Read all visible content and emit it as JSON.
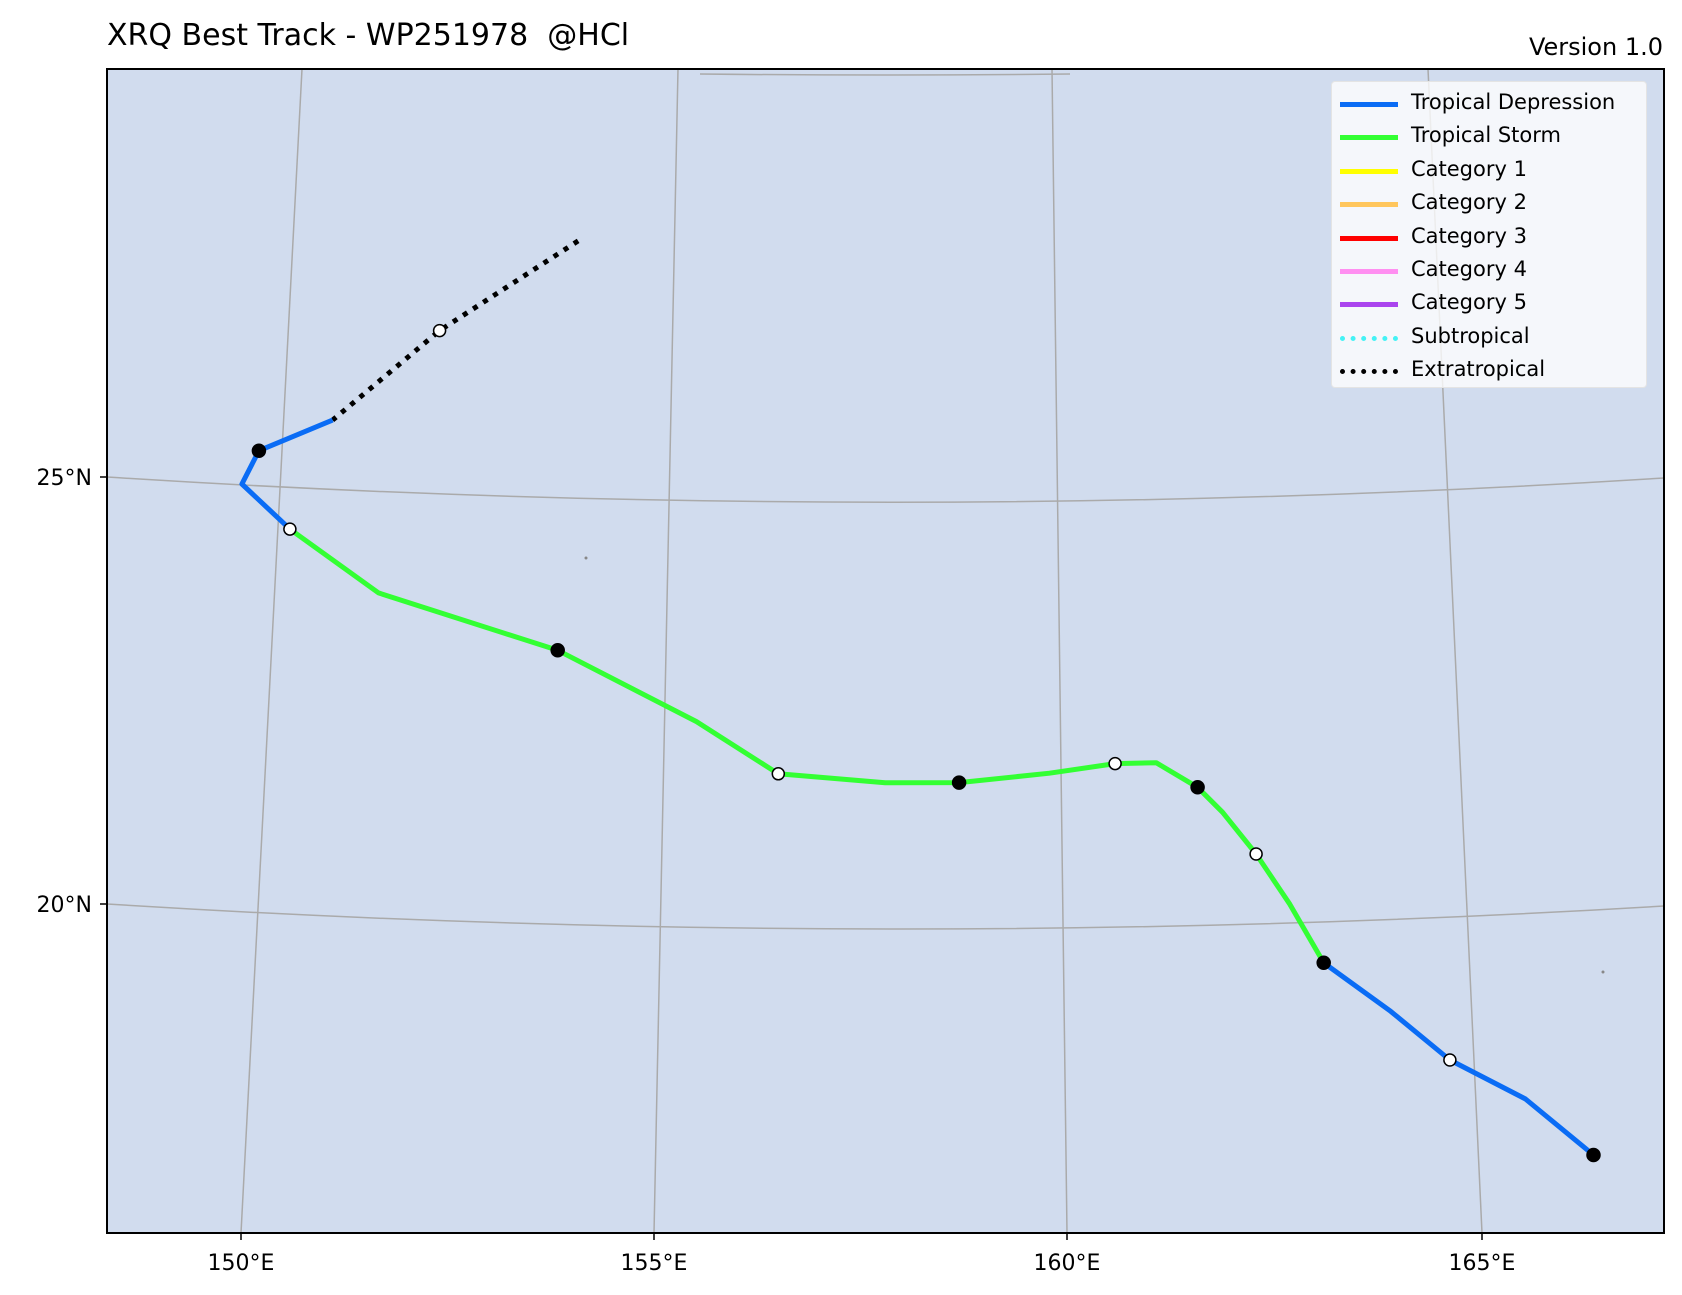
{
  "header": {
    "title": "XRQ Best Track - WP251978  @HCl",
    "version": "Version 1.0"
  },
  "map": {
    "background_color": "#d1dcee",
    "grid_color": "#aaaaaa",
    "lon_labels": [
      "150°E",
      "155°E",
      "160°E",
      "165°E"
    ],
    "lat_labels": [
      "25°N",
      "20°N"
    ]
  },
  "legend": [
    {
      "label": "Tropical Depression",
      "color": "#0a6cf5",
      "style": "solid"
    },
    {
      "label": "Tropical Storm",
      "color": "#33ff33",
      "style": "solid"
    },
    {
      "label": "Category 1",
      "color": "#ffff00",
      "style": "solid"
    },
    {
      "label": "Category 2",
      "color": "#ffc65c",
      "style": "solid"
    },
    {
      "label": "Category 3",
      "color": "#ff0000",
      "style": "solid"
    },
    {
      "label": "Category 4",
      "color": "#ff8ff1",
      "style": "solid"
    },
    {
      "label": "Category 5",
      "color": "#aa44ee",
      "style": "solid"
    },
    {
      "label": "Subtropical",
      "color": "#44f2f5",
      "style": "dotted"
    },
    {
      "label": "Extratropical",
      "color": "#000000",
      "style": "dotted"
    }
  ],
  "track": {
    "segments": [
      {
        "category": "Extratropical",
        "points": [
          [
            154.0,
            28.0
          ],
          [
            152.3,
            26.9
          ],
          [
            151.0,
            25.8
          ]
        ]
      },
      {
        "category": "Tropical Depression",
        "points": [
          [
            151.0,
            25.8
          ],
          [
            150.1,
            25.4
          ],
          [
            149.9,
            25.0
          ],
          [
            150.5,
            24.5
          ]
        ]
      },
      {
        "category": "Tropical Storm",
        "points": [
          [
            150.5,
            24.5
          ],
          [
            151.6,
            23.8
          ],
          [
            153.8,
            23.2
          ],
          [
            155.5,
            22.4
          ],
          [
            156.5,
            21.8
          ],
          [
            157.8,
            21.7
          ],
          [
            158.7,
            21.7
          ],
          [
            159.8,
            21.8
          ],
          [
            160.6,
            21.9
          ],
          [
            161.1,
            21.9
          ],
          [
            161.6,
            21.6
          ],
          [
            161.9,
            21.3
          ],
          [
            162.3,
            20.8
          ],
          [
            162.7,
            20.2
          ],
          [
            163.1,
            19.5
          ]
        ]
      },
      {
        "category": "Tropical Depression",
        "points": [
          [
            163.1,
            19.5
          ],
          [
            163.9,
            18.9
          ],
          [
            164.6,
            18.3
          ],
          [
            165.5,
            17.8
          ],
          [
            166.3,
            17.1
          ]
        ]
      }
    ],
    "fixes": [
      {
        "lon": 152.3,
        "lat": 26.9,
        "type": "open"
      },
      {
        "lon": 150.1,
        "lat": 25.4,
        "type": "filled"
      },
      {
        "lon": 150.5,
        "lat": 24.5,
        "type": "open"
      },
      {
        "lon": 153.8,
        "lat": 23.2,
        "type": "filled"
      },
      {
        "lon": 156.5,
        "lat": 21.8,
        "type": "open"
      },
      {
        "lon": 158.7,
        "lat": 21.7,
        "type": "filled"
      },
      {
        "lon": 160.6,
        "lat": 21.9,
        "type": "open"
      },
      {
        "lon": 161.6,
        "lat": 21.6,
        "type": "filled"
      },
      {
        "lon": 162.3,
        "lat": 20.8,
        "type": "open"
      },
      {
        "lon": 163.1,
        "lat": 19.5,
        "type": "filled"
      },
      {
        "lon": 164.6,
        "lat": 18.3,
        "type": "open"
      },
      {
        "lon": 166.3,
        "lat": 17.1,
        "type": "filled"
      }
    ]
  }
}
